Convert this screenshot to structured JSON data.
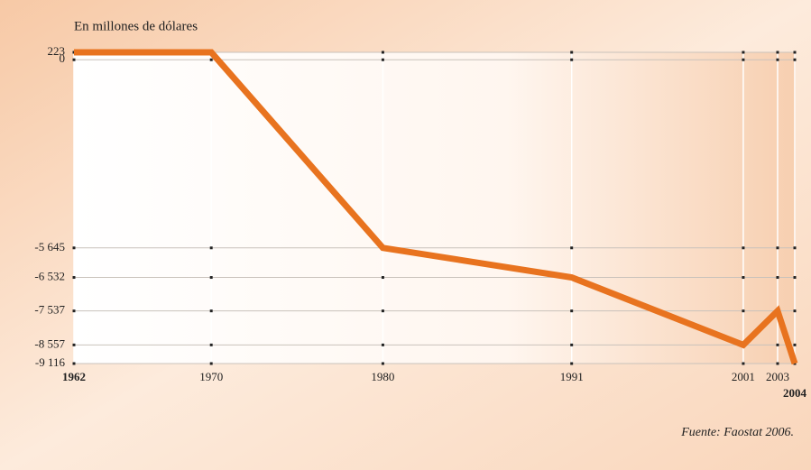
{
  "chart_data": {
    "type": "line",
    "title": "En millones de dólares",
    "source": "Fuente: Faostat 2006.",
    "x": [
      1962,
      1970,
      1980,
      1991,
      2001,
      2003,
      2004
    ],
    "series": [
      {
        "color": "#e8731f",
        "values": [
          223,
          223,
          -5645,
          -6532,
          -8557,
          -7537,
          -9116
        ]
      }
    ],
    "xlim": [
      1962,
      2004
    ],
    "xticks": [
      1962,
      1970,
      1980,
      1991,
      2001,
      2003,
      2004
    ],
    "ylim": [
      -9116,
      223
    ],
    "yticks": [
      223,
      0,
      {
        "value": -5645,
        "label": "-5 645"
      },
      {
        "value": -6532,
        "label": "-6 532"
      },
      {
        "value": -7537,
        "label": "-7 537"
      },
      {
        "value": -8557,
        "label": "-8 557"
      },
      {
        "value": -9116,
        "label": "-9 116"
      }
    ],
    "grid": true
  }
}
